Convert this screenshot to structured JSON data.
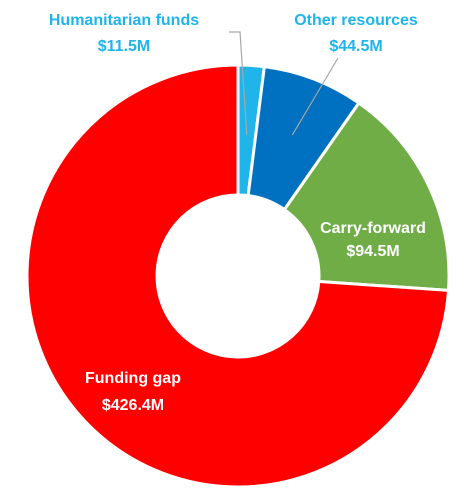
{
  "chart_data": {
    "type": "pie",
    "subtype": "donut",
    "slices": [
      {
        "name": "Humanitarian funds",
        "value": 11.5,
        "value_label": "$11.5M",
        "color": "#1fb4ea",
        "label_color": "#1fb4ea"
      },
      {
        "name": "Other resources",
        "value": 44.5,
        "value_label": "$44.5M",
        "color": "#0070c0",
        "label_color": "#1fb4ea"
      },
      {
        "name": "Carry-forward",
        "value": 94.5,
        "value_label": "$94.5M",
        "color": "#70ad47",
        "label_color": "#ffffff"
      },
      {
        "name": "Funding gap",
        "value": 426.4,
        "value_label": "$426.4M",
        "color": "#ff0000",
        "label_color": "#ffffff"
      }
    ]
  }
}
